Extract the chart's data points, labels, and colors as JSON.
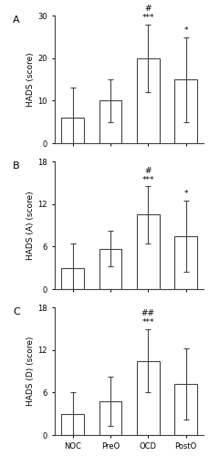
{
  "panels": [
    {
      "label": "A",
      "ylabel": "HADS (score)",
      "ylim": [
        0,
        30
      ],
      "yticks": [
        0,
        10,
        20,
        30
      ],
      "means": [
        6,
        10,
        20,
        15
      ],
      "errors": [
        7,
        5,
        8,
        10
      ],
      "annotations": {
        "2": [
          [
            "***",
            "#"
          ],
          0
        ],
        "3": [
          [
            "*"
          ],
          0
        ]
      }
    },
    {
      "label": "B",
      "ylabel": "HADS (A) (score)",
      "ylim": [
        0,
        18
      ],
      "yticks": [
        0,
        6,
        12,
        18
      ],
      "means": [
        3,
        5.7,
        10.5,
        7.5
      ],
      "errors": [
        3.5,
        2.5,
        4,
        5
      ],
      "annotations": {
        "2": [
          [
            "***",
            "#"
          ],
          0
        ],
        "3": [
          [
            "*"
          ],
          0
        ]
      }
    },
    {
      "label": "C",
      "ylabel": "HADS (D) (score)",
      "ylim": [
        0,
        18
      ],
      "yticks": [
        0,
        6,
        12,
        18
      ],
      "means": [
        3,
        4.8,
        10.5,
        7.2
      ],
      "errors": [
        3,
        3.5,
        4.5,
        5
      ],
      "annotations": {
        "2": [
          [
            "***",
            "##"
          ],
          0
        ],
        "3": [
          [],
          0
        ]
      }
    }
  ],
  "x_labels": [
    "NOC",
    "PreO",
    "OCD",
    "PostO"
  ],
  "bar_color": "#ffffff",
  "bar_edge_color": "#444444",
  "error_color": "#444444",
  "bar_width": 0.6,
  "figsize": [
    2.29,
    5.0
  ],
  "dpi": 100,
  "ann_fontsize": 6.5,
  "label_fontsize": 6.5,
  "tick_fontsize": 6,
  "xlabel_fontsize": 6.5,
  "panel_label_fontsize": 8
}
